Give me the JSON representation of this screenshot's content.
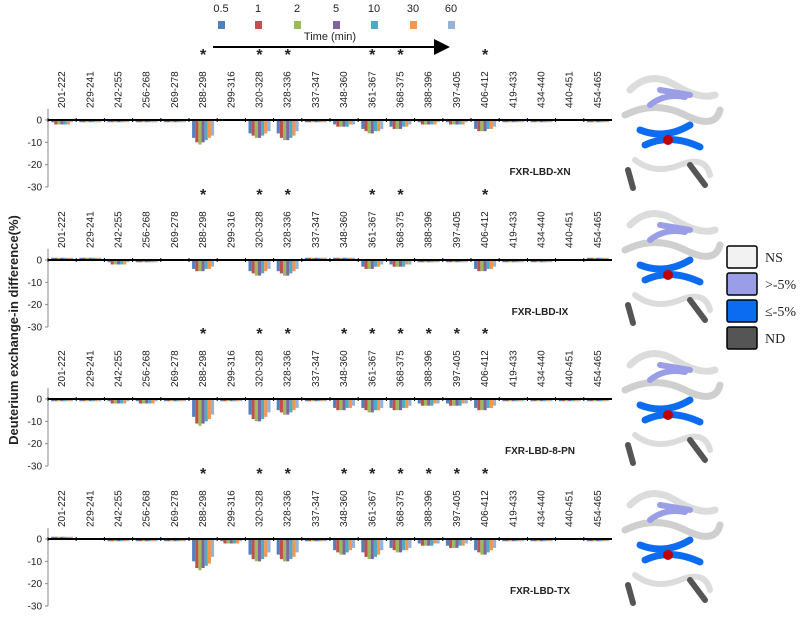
{
  "chart_data": [
    {
      "type": "bar",
      "label": "FXR-LBD-XN",
      "y_label": "Deuterium exchange-in difference(%)",
      "legend_title": "Time (min)",
      "categories": [
        "201-222",
        "229-241",
        "242-255",
        "256-268",
        "269-278",
        "288-298",
        "299-316",
        "320-328",
        "328-336",
        "337-347",
        "348-360",
        "361-367",
        "368-375",
        "388-396",
        "397-405",
        "406-412",
        "419-433",
        "434-440",
        "440-451",
        "454-465"
      ],
      "annotation": "*",
      "significant": [
        false,
        false,
        false,
        false,
        false,
        true,
        false,
        true,
        true,
        false,
        false,
        true,
        true,
        false,
        false,
        true,
        false,
        false,
        false,
        false
      ],
      "ylim": [
        -30,
        5
      ],
      "yticks": [
        -30,
        -20,
        -10,
        0
      ],
      "series": [
        {
          "name": "0.5",
          "color": "#4f81bd",
          "values": [
            -1,
            -1,
            -1,
            -1,
            -1,
            -8,
            0,
            -6,
            -6,
            -1,
            -2,
            -4,
            -3,
            -1,
            -1,
            -4,
            -1,
            -1,
            0,
            -1
          ]
        },
        {
          "name": "1",
          "color": "#c0504d",
          "values": [
            -2,
            -1,
            -1,
            -1,
            -1,
            -10,
            0,
            -7,
            -8,
            -1,
            -3,
            -5,
            -4,
            -2,
            -2,
            -5,
            -1,
            -1,
            0,
            -1
          ]
        },
        {
          "name": "2",
          "color": "#9bbb59",
          "values": [
            -2,
            -1,
            -1,
            -1,
            -1,
            -11,
            0,
            -8,
            -9,
            -1,
            -3,
            -6,
            -4,
            -2,
            -2,
            -5,
            -1,
            -1,
            0,
            -1
          ]
        },
        {
          "name": "5",
          "color": "#8064a2",
          "values": [
            -2,
            -1,
            -1,
            -1,
            -1,
            -10,
            0,
            -8,
            -9,
            -1,
            -3,
            -6,
            -4,
            -2,
            -2,
            -5,
            -1,
            -1,
            0,
            -1
          ]
        },
        {
          "name": "10",
          "color": "#4bacc6",
          "values": [
            -2,
            -1,
            -1,
            -1,
            -1,
            -9,
            0,
            -7,
            -8,
            -1,
            -3,
            -5,
            -3,
            -2,
            -2,
            -4,
            -1,
            -1,
            0,
            -1
          ]
        },
        {
          "name": "30",
          "color": "#f79646",
          "values": [
            -2,
            -1,
            -1,
            -1,
            -1,
            -8,
            0,
            -6,
            -7,
            -1,
            -2,
            -5,
            -3,
            -2,
            -2,
            -4,
            -1,
            -1,
            0,
            -1
          ]
        },
        {
          "name": "60",
          "color": "#95b3d7",
          "values": [
            -1,
            -1,
            -1,
            -1,
            -1,
            -7,
            0,
            -5,
            -5,
            -1,
            -2,
            -4,
            -2,
            -1,
            -1,
            -3,
            -1,
            -1,
            0,
            -1
          ]
        }
      ]
    },
    {
      "type": "bar",
      "label": "FXR-LBD-IX",
      "categories": [
        "201-222",
        "229-241",
        "242-255",
        "256-268",
        "269-278",
        "288-298",
        "299-316",
        "320-328",
        "328-336",
        "337-347",
        "348-360",
        "361-367",
        "368-375",
        "388-396",
        "397-405",
        "406-412",
        "419-433",
        "434-440",
        "440-451",
        "454-465"
      ],
      "annotation": "*",
      "significant": [
        false,
        false,
        false,
        false,
        false,
        true,
        false,
        true,
        true,
        false,
        false,
        true,
        true,
        false,
        false,
        true,
        false,
        false,
        false,
        false
      ],
      "ylim": [
        -30,
        5
      ],
      "yticks": [
        -30,
        -20,
        -10,
        0
      ],
      "series": [
        {
          "values": [
            1,
            1,
            -1,
            -1,
            0,
            -4,
            0,
            -5,
            -5,
            1,
            1,
            -3,
            -2,
            -1,
            -1,
            -4,
            -1,
            -1,
            0,
            1
          ]
        },
        {
          "values": [
            1,
            1,
            -2,
            -1,
            0,
            -5,
            0,
            -6,
            -6,
            1,
            1,
            -4,
            -3,
            -1,
            -1,
            -5,
            -1,
            -1,
            0,
            1
          ]
        },
        {
          "values": [
            1,
            1,
            -2,
            -1,
            0,
            -5,
            0,
            -7,
            -7,
            1,
            1,
            -4,
            -3,
            -1,
            -1,
            -5,
            -1,
            -1,
            0,
            1
          ]
        },
        {
          "values": [
            1,
            1,
            -2,
            -1,
            0,
            -5,
            0,
            -7,
            -7,
            1,
            1,
            -4,
            -3,
            -1,
            -1,
            -5,
            -1,
            -1,
            0,
            1
          ]
        },
        {
          "values": [
            1,
            1,
            -2,
            -1,
            0,
            -4,
            0,
            -6,
            -6,
            1,
            1,
            -3,
            -3,
            -1,
            -1,
            -4,
            -1,
            -1,
            0,
            1
          ]
        },
        {
          "values": [
            1,
            1,
            -2,
            -1,
            0,
            -4,
            0,
            -5,
            -5,
            1,
            1,
            -3,
            -2,
            -1,
            -1,
            -4,
            -1,
            -1,
            0,
            1
          ]
        },
        {
          "values": [
            1,
            1,
            -1,
            -1,
            0,
            -3,
            0,
            -4,
            -4,
            1,
            1,
            -2,
            -2,
            -1,
            -1,
            -3,
            -1,
            -1,
            0,
            1
          ]
        }
      ]
    },
    {
      "type": "bar",
      "label": "FXR-LBD-8-PN",
      "categories": [
        "201-222",
        "229-241",
        "242-255",
        "256-268",
        "269-278",
        "288-298",
        "299-316",
        "320-328",
        "328-336",
        "337-347",
        "348-360",
        "361-367",
        "368-375",
        "388-396",
        "397-405",
        "406-412",
        "419-433",
        "434-440",
        "440-451",
        "454-465"
      ],
      "annotation": "*",
      "significant": [
        false,
        false,
        false,
        false,
        false,
        true,
        false,
        true,
        true,
        false,
        true,
        true,
        true,
        true,
        true,
        true,
        false,
        false,
        false,
        false
      ],
      "ylim": [
        -30,
        5
      ],
      "yticks": [
        -30,
        -20,
        -10,
        0
      ],
      "series": [
        {
          "values": [
            -1,
            -1,
            -1,
            -1,
            -1,
            -8,
            -1,
            -7,
            -5,
            -1,
            -4,
            -4,
            -4,
            -2,
            -2,
            -4,
            -1,
            -1,
            -1,
            -1
          ]
        },
        {
          "values": [
            -1,
            -1,
            -2,
            -2,
            -1,
            -11,
            -1,
            -9,
            -6,
            -1,
            -5,
            -5,
            -5,
            -3,
            -3,
            -5,
            -1,
            -1,
            -1,
            -1
          ]
        },
        {
          "values": [
            -1,
            -1,
            -2,
            -2,
            -1,
            -12,
            -1,
            -10,
            -7,
            -1,
            -5,
            -6,
            -5,
            -3,
            -3,
            -5,
            -1,
            -1,
            -1,
            -1
          ]
        },
        {
          "values": [
            -1,
            -1,
            -2,
            -2,
            -1,
            -11,
            -1,
            -10,
            -7,
            -1,
            -5,
            -6,
            -5,
            -3,
            -3,
            -5,
            -1,
            -1,
            -1,
            -1
          ]
        },
        {
          "values": [
            -1,
            -1,
            -2,
            -2,
            -1,
            -10,
            -1,
            -9,
            -6,
            -1,
            -4,
            -5,
            -4,
            -3,
            -3,
            -4,
            -1,
            -1,
            -1,
            -1
          ]
        },
        {
          "values": [
            -1,
            -1,
            -2,
            -2,
            -1,
            -9,
            -1,
            -8,
            -5,
            -1,
            -4,
            -5,
            -4,
            -2,
            -2,
            -4,
            -1,
            -1,
            -1,
            -1
          ]
        },
        {
          "values": [
            -1,
            -1,
            -1,
            -1,
            -1,
            -7,
            -1,
            -6,
            -4,
            -1,
            -3,
            -4,
            -3,
            -2,
            -2,
            -3,
            -1,
            -1,
            -1,
            -1
          ]
        }
      ]
    },
    {
      "type": "bar",
      "label": "FXR-LBD-TX",
      "categories": [
        "201-222",
        "229-241",
        "242-255",
        "256-268",
        "269-278",
        "288-298",
        "299-316",
        "320-328",
        "328-336",
        "337-347",
        "348-360",
        "361-367",
        "368-375",
        "388-396",
        "397-405",
        "406-412",
        "419-433",
        "434-440",
        "440-451",
        "454-465"
      ],
      "annotation": "*",
      "significant": [
        false,
        false,
        false,
        false,
        false,
        true,
        false,
        true,
        true,
        false,
        true,
        true,
        true,
        true,
        true,
        true,
        false,
        false,
        false,
        false
      ],
      "ylim": [
        -30,
        5
      ],
      "yticks": [
        -30,
        -20,
        -10,
        0
      ],
      "series": [
        {
          "values": [
            1,
            0,
            -1,
            -1,
            -1,
            -10,
            -1,
            -7,
            -7,
            -1,
            -5,
            -6,
            -4,
            -2,
            -3,
            -5,
            -1,
            -1,
            0,
            -1
          ]
        },
        {
          "values": [
            1,
            0,
            -1,
            -1,
            -1,
            -13,
            -2,
            -9,
            -9,
            -1,
            -6,
            -8,
            -5,
            -3,
            -4,
            -6,
            -1,
            -1,
            0,
            -1
          ]
        },
        {
          "values": [
            1,
            0,
            -1,
            -1,
            -1,
            -14,
            -2,
            -10,
            -10,
            -1,
            -7,
            -9,
            -6,
            -3,
            -4,
            -7,
            -1,
            -1,
            0,
            -1
          ]
        },
        {
          "values": [
            1,
            0,
            -1,
            -1,
            -1,
            -13,
            -2,
            -10,
            -10,
            -1,
            -7,
            -9,
            -6,
            -3,
            -4,
            -7,
            -1,
            -1,
            0,
            -1
          ]
        },
        {
          "values": [
            1,
            0,
            -1,
            -1,
            -1,
            -12,
            -2,
            -9,
            -9,
            -1,
            -6,
            -8,
            -5,
            -3,
            -3,
            -6,
            -1,
            -1,
            0,
            -1
          ]
        },
        {
          "values": [
            1,
            0,
            -1,
            -1,
            -1,
            -11,
            -2,
            -8,
            -8,
            -1,
            -5,
            -7,
            -5,
            -2,
            -3,
            -5,
            -1,
            -1,
            0,
            -1
          ]
        },
        {
          "values": [
            1,
            0,
            -1,
            -1,
            -1,
            -8,
            -1,
            -6,
            -6,
            -1,
            -4,
            -5,
            -4,
            -2,
            -2,
            -4,
            -1,
            -1,
            0,
            -1
          ]
        }
      ]
    }
  ],
  "structure_legend": {
    "items": [
      {
        "label": "NS",
        "color": "#f2f2f2"
      },
      {
        "label": ">-5%",
        "color": "#9a9ee6"
      },
      {
        "label": "≤-5%",
        "color": "#0b6cf2"
      },
      {
        "label": "ND",
        "color": "#555555"
      }
    ]
  }
}
